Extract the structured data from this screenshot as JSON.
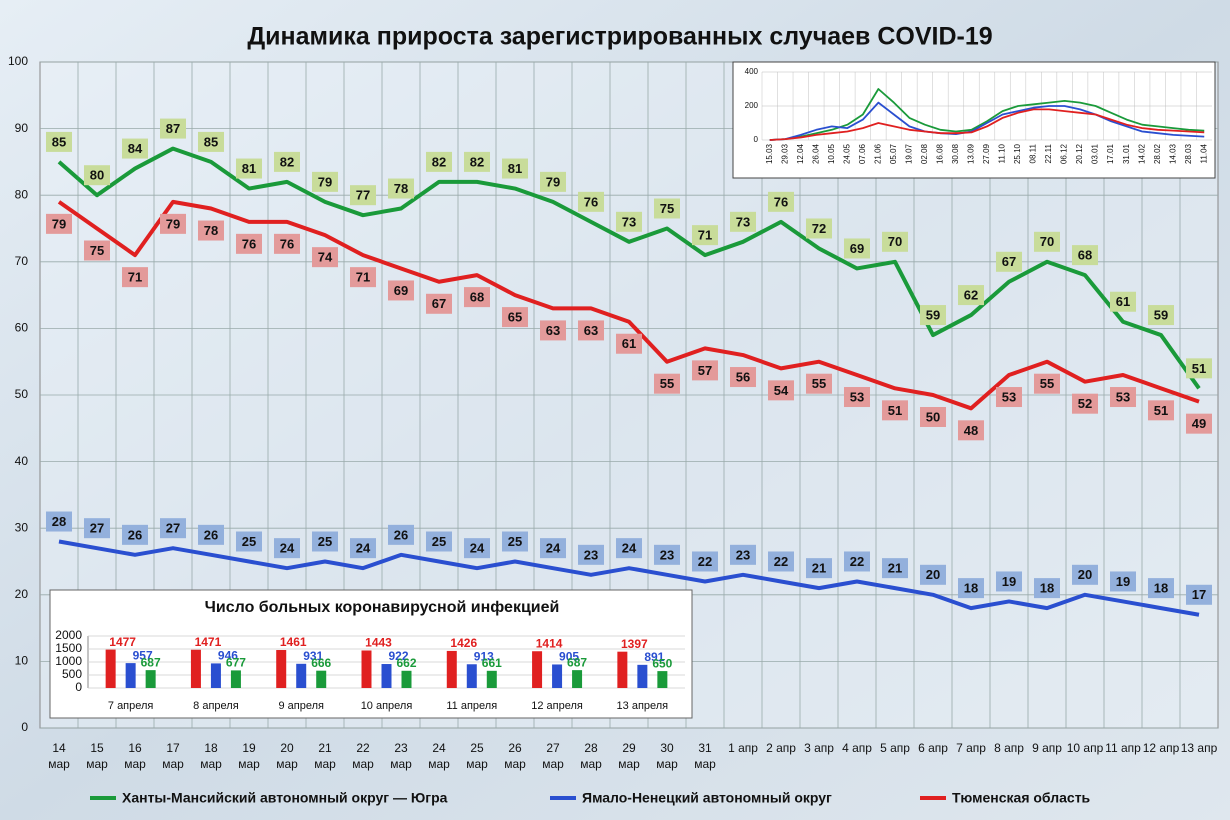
{
  "chart_data": [
    {
      "type": "line",
      "title": "Динамика прироста зарегистрированных случаев COVID-19",
      "categories": [
        "14 мар",
        "15 мар",
        "16 мар",
        "17 мар",
        "18 мар",
        "19 мар",
        "20 мар",
        "21 мар",
        "22 мар",
        "23 мар",
        "24 мар",
        "25 мар",
        "26 мар",
        "27 мар",
        "28 мар",
        "29 мар",
        "30 мар",
        "31 мар",
        "1 апр",
        "2 апр",
        "3 апр",
        "4 апр",
        "5 апр",
        "6 апр",
        "7 апр",
        "8 апр",
        "9 апр",
        "10 апр",
        "11 апр",
        "12 апр",
        "13 апр"
      ],
      "series": [
        {
          "name": "Ханты-Мансийский автономный округ — Югра",
          "color": "#1a9a3a",
          "label_color": "#c8dc9a",
          "values": [
            85,
            80,
            84,
            87,
            85,
            81,
            82,
            79,
            77,
            78,
            82,
            82,
            81,
            79,
            76,
            73,
            75,
            71,
            73,
            76,
            72,
            69,
            70,
            59,
            62,
            67,
            70,
            68,
            61,
            59,
            51
          ]
        },
        {
          "name": "Ямало-Ненецкий автономный округ",
          "color": "#2a4fd0",
          "label_color": "#93b0dc",
          "values": [
            28,
            27,
            26,
            27,
            26,
            25,
            24,
            25,
            24,
            26,
            25,
            24,
            25,
            24,
            23,
            24,
            23,
            22,
            23,
            22,
            21,
            22,
            21,
            20,
            18,
            19,
            18,
            20,
            19,
            18,
            17
          ]
        },
        {
          "name": "Тюменская область",
          "color": "#e02020",
          "label_color": "#e39a9a",
          "values": [
            79,
            75,
            71,
            79,
            78,
            76,
            76,
            74,
            71,
            69,
            67,
            68,
            65,
            63,
            63,
            61,
            55,
            57,
            56,
            54,
            55,
            53,
            51,
            50,
            48,
            53,
            55,
            52,
            53,
            51,
            49
          ]
        }
      ],
      "ylim": [
        0,
        100
      ],
      "yticks": [
        0,
        10,
        20,
        30,
        40,
        50,
        60,
        70,
        80,
        90,
        100
      ],
      "grid": true
    },
    {
      "type": "line",
      "categories": [
        "15.03",
        "29.03",
        "12.04",
        "26.04",
        "10.05",
        "24.05",
        "07.06",
        "21.06",
        "05.07",
        "19.07",
        "02.08",
        "16.08",
        "30.08",
        "13.09",
        "27.09",
        "11.10",
        "25.10",
        "08.11",
        "22.11",
        "06.12",
        "20.12",
        "03.01",
        "17.01",
        "31.01",
        "14.02",
        "28.02",
        "14.03",
        "28.03",
        "11.04"
      ],
      "series": [
        {
          "color": "#1a9a3a",
          "values": [
            0,
            5,
            20,
            40,
            60,
            90,
            150,
            300,
            220,
            130,
            90,
            60,
            50,
            60,
            110,
            170,
            200,
            210,
            220,
            230,
            220,
            200,
            160,
            120,
            90,
            80,
            70,
            60,
            55
          ]
        },
        {
          "color": "#2a4fd0",
          "values": [
            0,
            5,
            30,
            60,
            80,
            70,
            120,
            220,
            150,
            80,
            50,
            40,
            35,
            50,
            100,
            150,
            170,
            190,
            200,
            200,
            180,
            150,
            110,
            80,
            50,
            40,
            30,
            25,
            20
          ]
        },
        {
          "color": "#e02020",
          "values": [
            0,
            5,
            15,
            30,
            40,
            50,
            70,
            100,
            80,
            60,
            50,
            40,
            40,
            45,
            80,
            130,
            160,
            180,
            180,
            170,
            160,
            150,
            120,
            90,
            70,
            60,
            55,
            50,
            45
          ]
        }
      ],
      "ylim": [
        0,
        400
      ],
      "yticks": [
        0,
        200,
        400
      ],
      "grid": true
    },
    {
      "type": "bar",
      "title": "Число больных коронавирусной  инфекцией",
      "categories": [
        "7 апреля",
        "8 апреля",
        "9 апреля",
        "10 апреля",
        "11 апреля",
        "12 апреля",
        "13 апреля"
      ],
      "series": [
        {
          "color": "#e02020",
          "values": [
            1477,
            1471,
            1461,
            1443,
            1426,
            1414,
            1397
          ]
        },
        {
          "color": "#2a4fd0",
          "values": [
            957,
            946,
            931,
            922,
            913,
            905,
            891
          ]
        },
        {
          "color": "#1a9a3a",
          "values": [
            687,
            677,
            666,
            662,
            661,
            687,
            650
          ]
        }
      ],
      "ylim": [
        0,
        2000
      ],
      "yticks": [
        0,
        500,
        1000,
        1500,
        2000
      ],
      "grid": true
    }
  ]
}
